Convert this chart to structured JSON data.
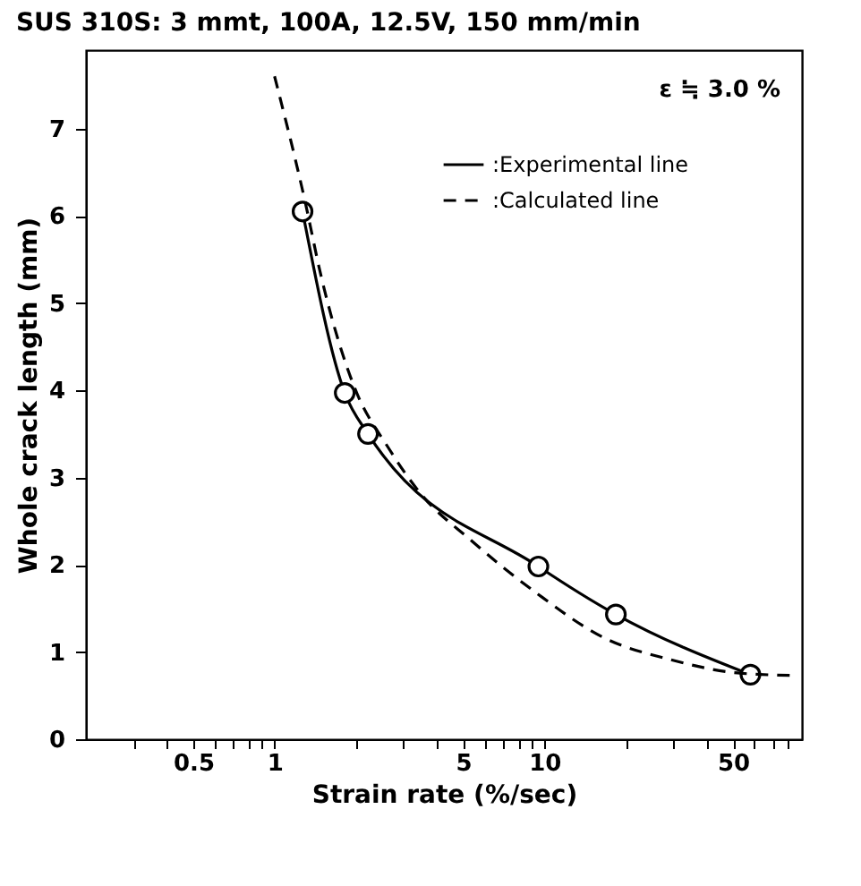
{
  "chart_data": {
    "type": "line",
    "title": "SUS 310S: 3 mmt, 100A, 12.5V, 150 mm/min",
    "xlabel": "Strain rate (%/sec)",
    "ylabel": "Whole crack length (mm)",
    "annotations": [
      "ε ≒ 3.0 %"
    ],
    "log": "x",
    "grid": false,
    "legend": "top right",
    "xlim": [
      0.2,
      90
    ],
    "ylim": [
      0,
      7.9
    ],
    "xticks": [
      {
        "value": 0.3,
        "label": null
      },
      {
        "value": 0.4,
        "label": null
      },
      0.5,
      {
        "value": 0.6,
        "label": null
      },
      {
        "value": 0.7,
        "label": null
      },
      {
        "value": 0.8,
        "label": null
      },
      {
        "value": 0.9,
        "label": null
      },
      1,
      {
        "value": 2,
        "label": null
      },
      {
        "value": 3,
        "label": null
      },
      {
        "value": 4,
        "label": null
      },
      5,
      {
        "value": 6,
        "label": null
      },
      {
        "value": 7,
        "label": null
      },
      {
        "value": 8,
        "label": null
      },
      {
        "value": 9,
        "label": null
      },
      10,
      {
        "value": 20,
        "label": null
      },
      {
        "value": 30,
        "label": null
      },
      {
        "value": 40,
        "label": null
      },
      50,
      {
        "value": 60,
        "label": null
      },
      {
        "value": 70,
        "label": null
      },
      {
        "value": 80,
        "label": null
      }
    ],
    "yticks": [
      0,
      1,
      2,
      3,
      4,
      5,
      6,
      7
    ],
    "series": [
      {
        "name": ":Experimental line",
        "color": "#000000",
        "marker": "circle",
        "line_style": "solid",
        "x": [
          1.27,
          1.82,
          2.22,
          9.5,
          18.4,
          58
        ],
        "values": [
          6.05,
          3.97,
          3.5,
          1.98,
          1.43,
          0.74
        ]
      },
      {
        "name": ":Calculated line",
        "color": "#000000",
        "marker": "none",
        "line_style": "dashed",
        "x": [
          1.0,
          1.29,
          1.49,
          1.98,
          2.63,
          3.49,
          5.3,
          9.4,
          16.7,
          29.5,
          52,
          85
        ],
        "values": [
          7.6,
          6.2,
          5.3,
          4.03,
          3.35,
          2.81,
          2.29,
          1.67,
          1.16,
          0.91,
          0.76,
          0.73
        ]
      }
    ]
  }
}
